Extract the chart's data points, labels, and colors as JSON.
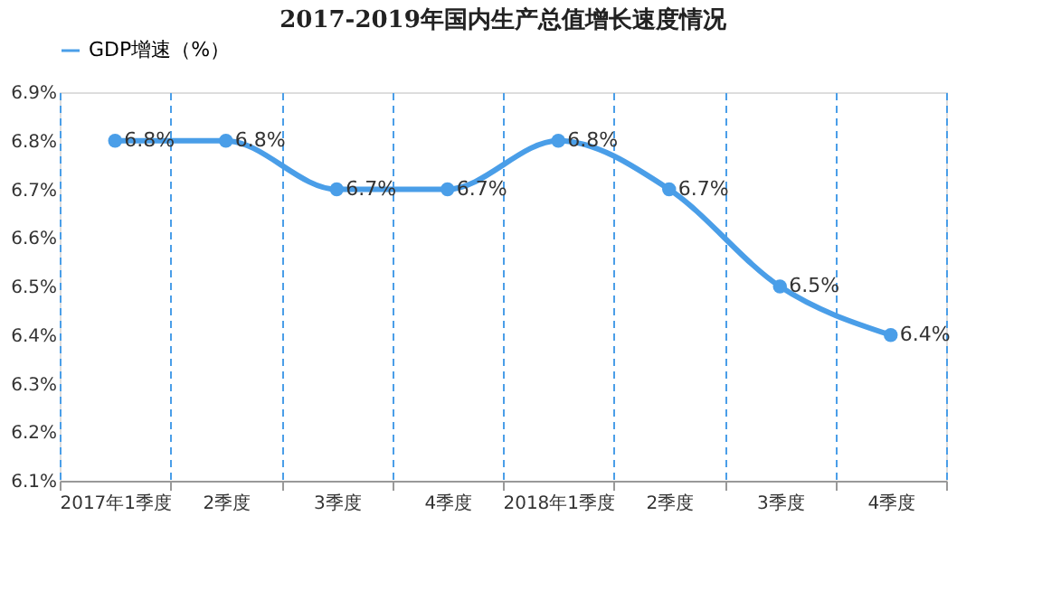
{
  "chart_data": {
    "type": "line",
    "title": "2017-2019年国内生产总值增长速度情况",
    "categories": [
      "2017年1季度",
      "2季度",
      "3季度",
      "4季度",
      "2018年1季度",
      "2季度",
      "3季度",
      "4季度"
    ],
    "series": [
      {
        "name": "GDP增速（%）",
        "color": "#4a9ee8",
        "values": [
          6.8,
          6.8,
          6.7,
          6.7,
          6.8,
          6.7,
          6.5,
          6.4
        ],
        "value_labels": [
          "6.8%",
          "6.8%",
          "6.7%",
          "6.7%",
          "6.8%",
          "6.7%",
          "6.5%",
          "6.4%"
        ]
      }
    ],
    "ylim": [
      6.1,
      6.9
    ],
    "yticks": [
      {
        "value": 6.1,
        "label": "6.1%"
      },
      {
        "value": 6.2,
        "label": "6.2%"
      },
      {
        "value": 6.3,
        "label": "6.3%"
      },
      {
        "value": 6.4,
        "label": "6.4%"
      },
      {
        "value": 6.5,
        "label": "6.5%"
      },
      {
        "value": 6.6,
        "label": "6.6%"
      },
      {
        "value": 6.7,
        "label": "6.7%"
      },
      {
        "value": 6.8,
        "label": "6.8%"
      },
      {
        "value": 6.9,
        "label": "6.9%"
      }
    ],
    "grid": "x",
    "legend": "top",
    "marker": "circle",
    "line_style": "solid"
  }
}
